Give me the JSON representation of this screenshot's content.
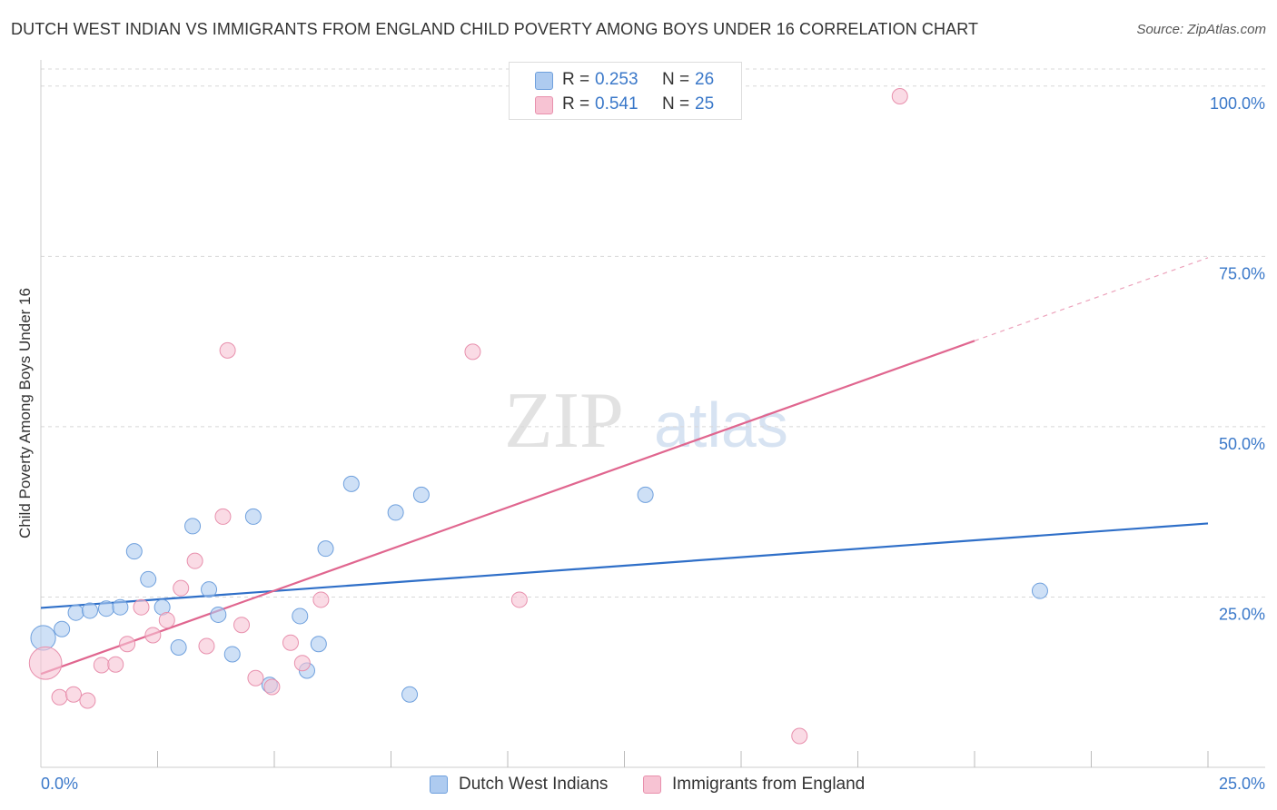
{
  "header": {
    "title": "DUTCH WEST INDIAN VS IMMIGRANTS FROM ENGLAND CHILD POVERTY AMONG BOYS UNDER 16 CORRELATION CHART",
    "source": "Source: ZipAtlas.com"
  },
  "watermark": {
    "zip": "ZIP",
    "atlas": "atlas"
  },
  "legend": {
    "rows": [
      {
        "r_label": "R =",
        "r_value": "0.253",
        "n_label": "N =",
        "n_value": "26"
      },
      {
        "r_label": "R =",
        "r_value": "0.541",
        "n_label": "N =",
        "n_value": "25"
      }
    ]
  },
  "bottom_legend": {
    "series_1": "Dutch West Indians",
    "series_2": "Immigrants from England"
  },
  "colors": {
    "blue_fill": "#aecbf0",
    "blue_stroke": "#6fa0dd",
    "blue_line": "#2f6fc8",
    "pink_fill": "#f7c3d3",
    "pink_stroke": "#e890ad",
    "pink_line": "#e0668f",
    "tick_label": "#3a78c9",
    "grid": "#d8d8d8"
  },
  "chart_data": {
    "type": "scatter",
    "title": "DUTCH WEST INDIAN VS IMMIGRANTS FROM ENGLAND CHILD POVERTY AMONG BOYS UNDER 16 CORRELATION CHART",
    "xlabel": "",
    "ylabel": "Child Poverty Among Boys Under 16",
    "xlim": [
      0,
      25
    ],
    "ylim": [
      0,
      102.5
    ],
    "x_tick_labels": [
      {
        "value": 0,
        "label": "0.0%"
      },
      {
        "value": 25,
        "label": "25.0%"
      }
    ],
    "y_tick_labels": [
      {
        "value": 25,
        "label": "25.0%"
      },
      {
        "value": 50,
        "label": "50.0%"
      },
      {
        "value": 75,
        "label": "75.0%"
      },
      {
        "value": 100,
        "label": "100.0%"
      }
    ],
    "x_minor_ticks": [
      2.5,
      5,
      7.5,
      10,
      12.5,
      15,
      17.5,
      20,
      22.5,
      25
    ],
    "grid": true,
    "legend_position": "top-center",
    "series": [
      {
        "name": "Dutch West Indians",
        "color": "#aecbf0",
        "r": 0.253,
        "n": 26,
        "trend": {
          "x": [
            0,
            25
          ],
          "y": [
            23.4,
            35.8
          ]
        },
        "points": [
          {
            "x": 0.05,
            "y": 19.0,
            "s": 1.6
          },
          {
            "x": 0.45,
            "y": 20.3
          },
          {
            "x": 0.75,
            "y": 22.7
          },
          {
            "x": 1.05,
            "y": 23.0
          },
          {
            "x": 1.4,
            "y": 23.3
          },
          {
            "x": 1.7,
            "y": 23.5
          },
          {
            "x": 2.0,
            "y": 31.7
          },
          {
            "x": 2.3,
            "y": 27.6
          },
          {
            "x": 2.6,
            "y": 23.5
          },
          {
            "x": 2.95,
            "y": 17.6
          },
          {
            "x": 3.25,
            "y": 35.4
          },
          {
            "x": 3.6,
            "y": 26.1
          },
          {
            "x": 3.8,
            "y": 22.4
          },
          {
            "x": 4.1,
            "y": 16.6
          },
          {
            "x": 4.55,
            "y": 36.8
          },
          {
            "x": 4.9,
            "y": 12.1
          },
          {
            "x": 5.55,
            "y": 22.2
          },
          {
            "x": 5.7,
            "y": 14.2
          },
          {
            "x": 5.95,
            "y": 18.1
          },
          {
            "x": 6.1,
            "y": 32.1
          },
          {
            "x": 6.65,
            "y": 41.6
          },
          {
            "x": 7.6,
            "y": 37.4
          },
          {
            "x": 8.15,
            "y": 40.0
          },
          {
            "x": 7.9,
            "y": 10.7
          },
          {
            "x": 12.95,
            "y": 40.0
          },
          {
            "x": 21.4,
            "y": 25.9
          }
        ]
      },
      {
        "name": "Immigrants from England",
        "color": "#f7c3d3",
        "r": 0.541,
        "n": 25,
        "trend": {
          "x": [
            0,
            20.0
          ],
          "y": [
            13.7,
            62.6
          ]
        },
        "trend_dashed": {
          "x": [
            20.0,
            25
          ],
          "y": [
            62.6,
            74.8
          ]
        },
        "points": [
          {
            "x": 0.1,
            "y": 15.3,
            "s": 2.1
          },
          {
            "x": 0.4,
            "y": 10.3
          },
          {
            "x": 0.7,
            "y": 10.7
          },
          {
            "x": 1.0,
            "y": 9.8
          },
          {
            "x": 1.3,
            "y": 15.0
          },
          {
            "x": 1.6,
            "y": 15.1
          },
          {
            "x": 1.85,
            "y": 18.1
          },
          {
            "x": 2.15,
            "y": 23.5
          },
          {
            "x": 2.4,
            "y": 19.4
          },
          {
            "x": 2.7,
            "y": 21.6
          },
          {
            "x": 3.0,
            "y": 26.3
          },
          {
            "x": 3.3,
            "y": 30.3
          },
          {
            "x": 3.55,
            "y": 17.8
          },
          {
            "x": 3.9,
            "y": 36.8
          },
          {
            "x": 4.0,
            "y": 61.2
          },
          {
            "x": 4.3,
            "y": 20.9
          },
          {
            "x": 4.6,
            "y": 13.1
          },
          {
            "x": 4.95,
            "y": 11.8
          },
          {
            "x": 5.35,
            "y": 18.3
          },
          {
            "x": 5.6,
            "y": 15.3
          },
          {
            "x": 6.0,
            "y": 24.6
          },
          {
            "x": 9.25,
            "y": 61.0
          },
          {
            "x": 10.25,
            "y": 24.6
          },
          {
            "x": 16.25,
            "y": 4.6
          },
          {
            "x": 18.4,
            "y": 98.5
          }
        ]
      }
    ]
  }
}
